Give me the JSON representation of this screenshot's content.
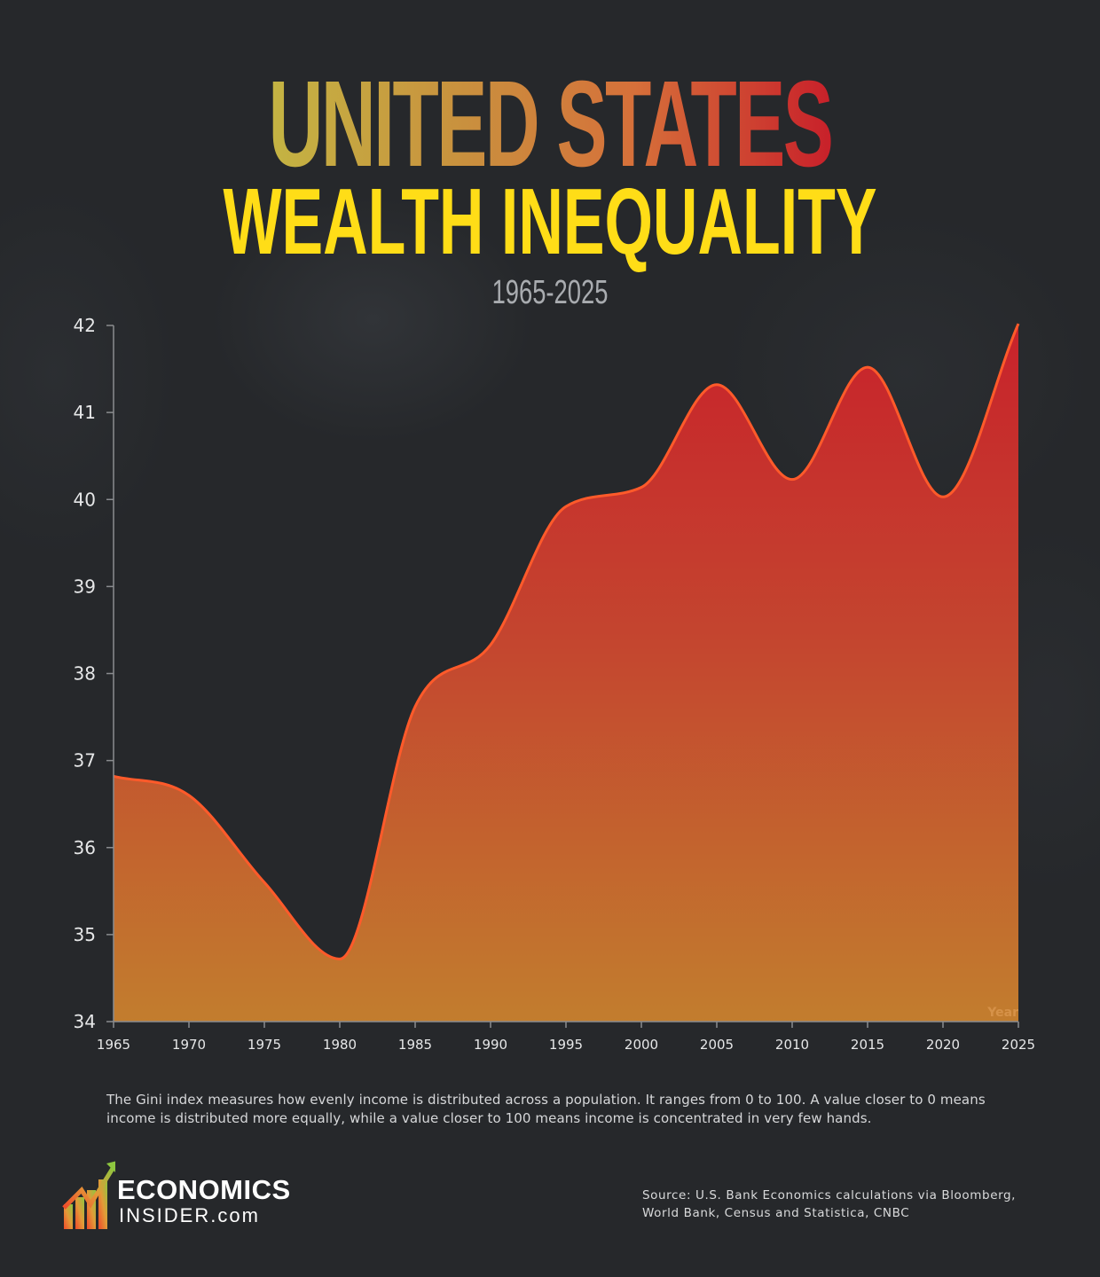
{
  "header": {
    "title_line1": "UNITED STATES",
    "title_line2": "WEALTH INEQUALITY",
    "subtitle": "1965-2025"
  },
  "colors": {
    "background": "#26282b",
    "title_gradient": [
      "#c4b443",
      "#c9903e",
      "#d6703a",
      "#c8202a"
    ],
    "title_line2": "#ffdd17",
    "area_top": "#c8222b",
    "area_mid": "#c4452f",
    "area_bottom": "#c27d2e",
    "line": "#ff5a2a",
    "axis": "#8a8c8f"
  },
  "chart_data": {
    "type": "area",
    "title": "United States Wealth Inequality 1965-2025",
    "xlabel": "Year",
    "ylabel": "",
    "x": [
      1965,
      1970,
      1975,
      1980,
      1985,
      1990,
      1995,
      2000,
      2005,
      2010,
      2015,
      2020,
      2025
    ],
    "values": [
      36.82,
      36.6,
      35.6,
      34.72,
      37.62,
      38.33,
      39.92,
      40.14,
      41.32,
      40.23,
      41.52,
      40.03,
      42.02
    ],
    "series": [
      {
        "name": "Gini index",
        "values": [
          36.82,
          36.6,
          35.6,
          34.72,
          37.62,
          38.33,
          39.92,
          40.14,
          41.32,
          40.23,
          41.52,
          40.03,
          42.02
        ]
      }
    ],
    "xlim": [
      1965,
      2025
    ],
    "ylim": [
      34,
      42
    ],
    "x_ticks": [
      "1965",
      "1970",
      "1975",
      "1980",
      "1985",
      "1990",
      "1995",
      "2000",
      "2005",
      "2010",
      "2015",
      "2020",
      "2025"
    ],
    "y_ticks": [
      "34",
      "35",
      "36",
      "37",
      "38",
      "39",
      "40",
      "41",
      "42"
    ],
    "grid": false,
    "legend": "none",
    "smooth": true
  },
  "footer": {
    "note": "The Gini index measures how evenly income is distributed across a population. It ranges from 0 to 100. A value closer to 0 means income is distributed more equally, while a value closer to 100 means income is concentrated in very few hands.",
    "logo_line1": "ECONOMICS",
    "logo_line2": "INSIDER.com",
    "source": "Source: U.S. Bank Economics calculations via Bloomberg, World Bank, Census and Statistica, CNBC"
  }
}
